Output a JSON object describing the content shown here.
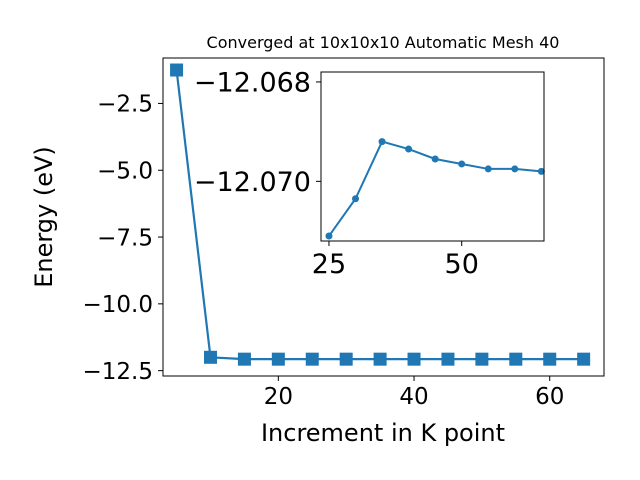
{
  "colors": {
    "series": "#1f77b4",
    "axis": "#000000",
    "background": "#ffffff"
  },
  "chart_data": [
    {
      "id": "main",
      "type": "line",
      "title": "Converged at 10x10x10 Automatic Mesh 40",
      "xlabel": "Increment in K point",
      "ylabel": "Energy (eV)",
      "marker": "square",
      "xlim": [
        3,
        68
      ],
      "ylim": [
        -12.7,
        -0.8
      ],
      "xticks": [
        20,
        40,
        60
      ],
      "xtick_labels": [
        "20",
        "40",
        "60"
      ],
      "yticks": [
        -2.5,
        -5.0,
        -7.5,
        -10.0,
        -12.5
      ],
      "ytick_labels": [
        "−2.5",
        "−5.0",
        "−7.5",
        "−10.0",
        "−12.5"
      ],
      "grid": false,
      "series": [
        {
          "x": [
            5,
            10,
            15,
            20,
            25,
            30,
            35,
            40,
            45,
            50,
            55,
            60,
            65
          ],
          "y": [
            -1.25,
            -12.0,
            -12.07,
            -12.07,
            -12.07,
            -12.07,
            -12.07,
            -12.07,
            -12.07,
            -12.07,
            -12.07,
            -12.07,
            -12.07
          ]
        }
      ]
    },
    {
      "id": "inset",
      "type": "line",
      "marker": "circle",
      "xlim": [
        23.5,
        65.5
      ],
      "ylim": [
        -12.0712,
        -12.0678
      ],
      "xticks": [
        25,
        50
      ],
      "xtick_labels": [
        "25",
        "50"
      ],
      "yticks": [
        -12.07,
        -12.068
      ],
      "ytick_labels": [
        "−12.070",
        "−12.068"
      ],
      "grid": false,
      "series": [
        {
          "x": [
            25,
            30,
            35,
            40,
            45,
            50,
            55,
            60,
            65
          ],
          "y": [
            -12.0711,
            -12.07035,
            -12.0692,
            -12.06935,
            -12.06955,
            -12.06965,
            -12.06975,
            -12.06975,
            -12.0698
          ]
        }
      ]
    }
  ]
}
